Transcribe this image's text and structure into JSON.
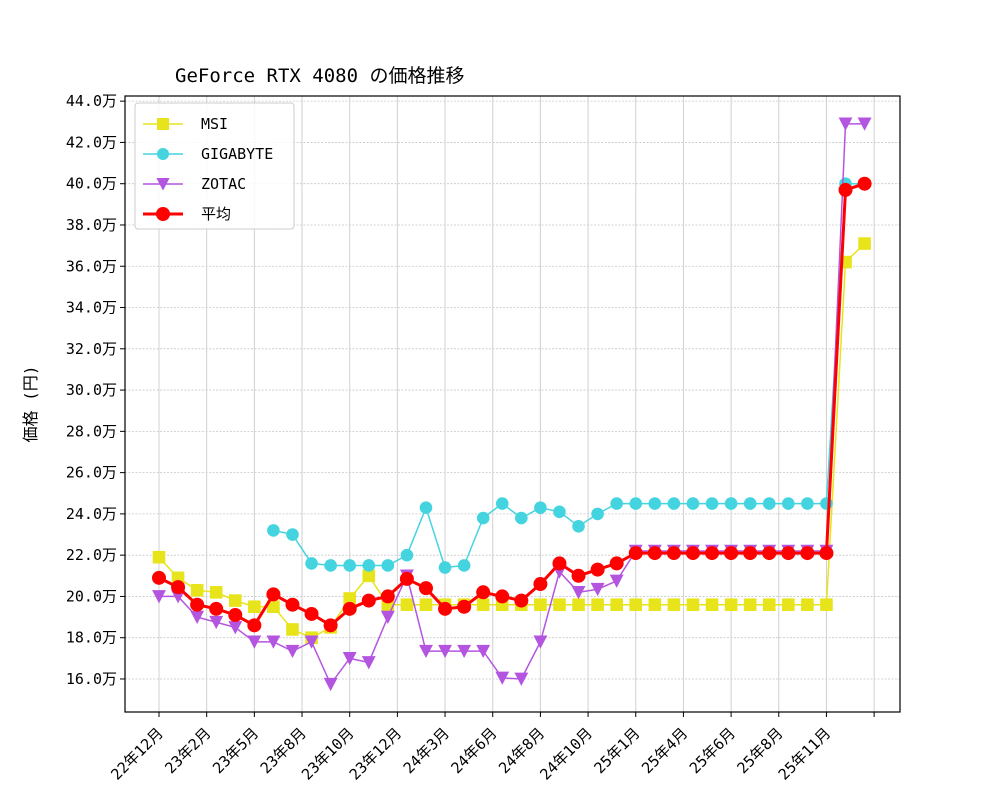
{
  "chart_data": {
    "type": "line",
    "title": "GeForce RTX 4080 の価格推移",
    "xlabel": "",
    "ylabel": "価格 (円)",
    "ylim": [
      14.4,
      44.25
    ],
    "y_unit_suffix": "万",
    "yticks": [
      16,
      18,
      20,
      22,
      24,
      26,
      28,
      30,
      32,
      34,
      36,
      38,
      40,
      42,
      44
    ],
    "ytick_labels": [
      "16.0万",
      "18.0万",
      "20.0万",
      "22.0万",
      "24.0万",
      "26.0万",
      "28.0万",
      "30.0万",
      "32.0万",
      "34.0万",
      "36.0万",
      "38.0万",
      "40.0万",
      "42.0万",
      "44.0万"
    ],
    "xtick_labels": [
      "22年12月",
      "23年2月",
      "23年5月",
      "23年8月",
      "23年10月",
      "23年12月",
      "24年3月",
      "24年6月",
      "24年8月",
      "24年10月",
      "25年1月",
      "25年4月",
      "25年6月",
      "25年8月",
      "25年11月",
      ""
    ],
    "grid": true,
    "legend_position": "upper-left",
    "series": [
      {
        "name": "MSI",
        "color": "#e8e41c",
        "marker": "square",
        "values": [
          21.9,
          20.9,
          20.3,
          20.2,
          19.8,
          19.5,
          19.5,
          18.4,
          18.0,
          18.5,
          19.9,
          21.0,
          19.6,
          19.6,
          19.6,
          19.6,
          19.6,
          19.6,
          19.6,
          19.6,
          19.6,
          19.6,
          19.6,
          19.6,
          19.6,
          19.6,
          19.6,
          19.6,
          19.6,
          19.6,
          19.6,
          19.6,
          19.6,
          19.6,
          19.6,
          19.6,
          36.2,
          37.1
        ]
      },
      {
        "name": "GIGABYTE",
        "color": "#44d4e0",
        "marker": "circle",
        "values": [
          null,
          null,
          null,
          null,
          null,
          null,
          23.2,
          23.0,
          21.6,
          21.5,
          21.5,
          21.5,
          21.5,
          22.0,
          24.3,
          21.4,
          21.5,
          23.8,
          24.5,
          23.8,
          24.3,
          24.1,
          23.4,
          24.0,
          24.5,
          24.5,
          24.5,
          24.5,
          24.5,
          24.5,
          24.5,
          24.5,
          24.5,
          24.5,
          24.5,
          24.5,
          40.0,
          40.0
        ]
      },
      {
        "name": "ZOTAC",
        "color": "#b455e0",
        "marker": "triangle-down",
        "values": [
          20.0,
          20.0,
          19.0,
          18.75,
          18.5,
          17.8,
          17.8,
          17.35,
          17.8,
          15.75,
          17.0,
          16.8,
          19.0,
          21.0,
          17.35,
          17.35,
          17.35,
          17.35,
          16.05,
          16.0,
          17.8,
          21.2,
          20.2,
          20.35,
          20.75,
          22.2,
          22.2,
          22.2,
          22.2,
          22.2,
          22.2,
          22.2,
          22.2,
          22.2,
          22.2,
          22.2,
          42.9,
          42.9
        ]
      },
      {
        "name": "平均",
        "color": "#ff0000",
        "marker": "circle",
        "values": [
          20.9,
          20.45,
          19.6,
          19.4,
          19.1,
          18.6,
          20.1,
          19.6,
          19.15,
          18.6,
          19.4,
          19.8,
          20.0,
          20.85,
          20.4,
          19.4,
          19.5,
          20.2,
          20.0,
          19.8,
          20.6,
          21.6,
          21.0,
          21.3,
          21.6,
          22.1,
          22.1,
          22.1,
          22.1,
          22.1,
          22.1,
          22.1,
          22.1,
          22.1,
          22.1,
          22.1,
          39.7,
          40.0
        ]
      }
    ]
  }
}
